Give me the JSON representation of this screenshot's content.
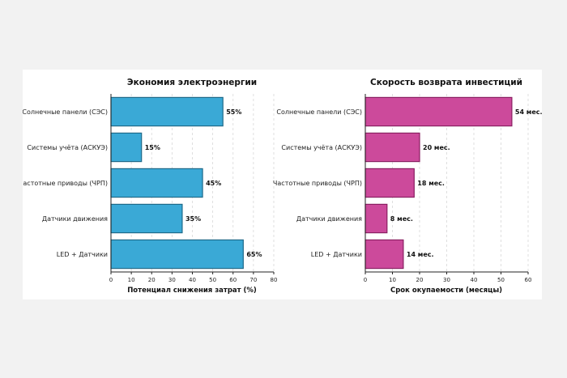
{
  "chart_data": [
    {
      "type": "bar",
      "orientation": "horizontal",
      "title": "Экономия электроэнергии",
      "xlabel": "Потенциал снижения затрат (%)",
      "ylabel": "",
      "categories": [
        "Солнечные панели (СЭС)",
        "Системы учёта (АСКУЭ)",
        "Частотные приводы (ЧРП)",
        "Датчики движения",
        "LED + Датчики"
      ],
      "values": [
        55,
        15,
        45,
        35,
        65
      ],
      "value_labels": [
        "55%",
        "15%",
        "45%",
        "35%",
        "65%"
      ],
      "xlim": [
        0,
        80
      ],
      "xticks": [
        "0",
        "10",
        "20",
        "30",
        "40",
        "50",
        "60",
        "70",
        "80"
      ],
      "grid": "vertical",
      "color": "#3aa9d6",
      "edge_color": "#1e6a8a"
    },
    {
      "type": "bar",
      "orientation": "horizontal",
      "title": "Скорость возврата инвестиций",
      "xlabel": "Срок окупаемости (месяцы)",
      "ylabel": "",
      "categories": [
        "Солнечные панели (СЭС)",
        "Системы учёта (АСКУЭ)",
        "Частотные приводы (ЧРП)",
        "Датчики движения",
        "LED + Датчики"
      ],
      "values": [
        54,
        20,
        18,
        8,
        14
      ],
      "value_labels": [
        "54 мес.",
        "20 мес.",
        "18 мес.",
        "8 мес.",
        "14 мес."
      ],
      "xlim": [
        0,
        60
      ],
      "xticks": [
        "0",
        "10",
        "20",
        "30",
        "40",
        "50",
        "60"
      ],
      "grid": "vertical",
      "color": "#cc4a9b",
      "edge_color": "#8a1f62"
    }
  ]
}
